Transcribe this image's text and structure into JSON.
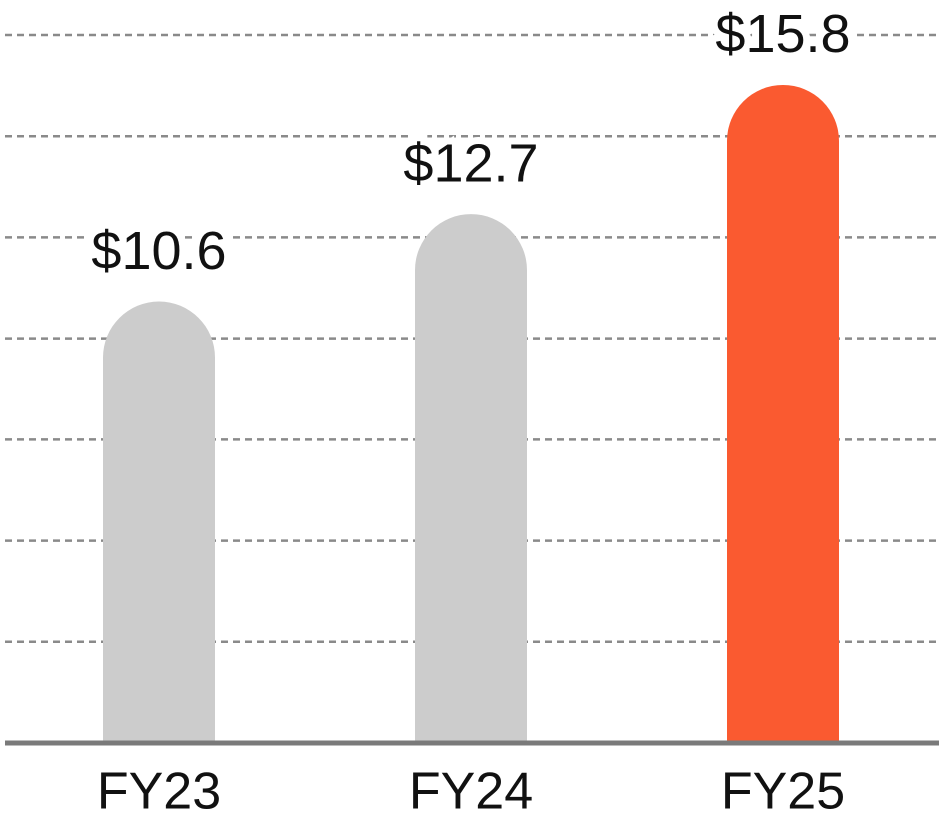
{
  "chart_data": {
    "type": "bar",
    "categories": [
      "FY23",
      "FY24",
      "FY25"
    ],
    "values": [
      10.6,
      12.7,
      15.8
    ],
    "value_labels": [
      "$10.6",
      "$12.7",
      "$15.8"
    ],
    "colors": [
      "#cccccc",
      "#cccccc",
      "#fa5a30"
    ],
    "ylim": [
      0,
      17
    ],
    "yticks": [
      2.43,
      4.86,
      7.29,
      9.71,
      12.14,
      14.57,
      17
    ],
    "grid": true
  }
}
